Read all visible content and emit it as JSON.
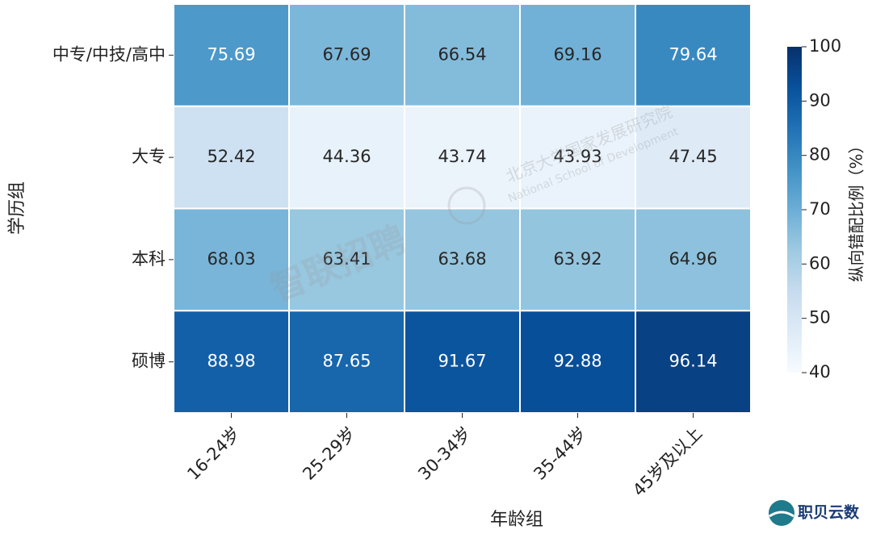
{
  "chart_data": {
    "type": "heatmap",
    "x_label": "年龄组",
    "y_label": "学历组",
    "categories": [
      "16-24岁",
      "25-29岁",
      "30-34岁",
      "35-44岁",
      "45岁及以上"
    ],
    "rows": [
      "中专/中技/高中",
      "大专",
      "本科",
      "硕博"
    ],
    "values": [
      [
        75.69,
        67.69,
        66.54,
        69.16,
        79.64
      ],
      [
        52.42,
        44.36,
        43.74,
        43.93,
        47.45
      ],
      [
        68.03,
        63.41,
        63.68,
        63.92,
        64.96
      ],
      [
        88.98,
        87.65,
        91.67,
        92.88,
        96.14
      ]
    ],
    "colormap": "Blues",
    "colorbar_label": "纵向错配比例（%）",
    "clim": [
      40,
      100
    ],
    "cticks": [
      40,
      50,
      60,
      70,
      80,
      90,
      100
    ]
  },
  "watermarks": [
    "智联招聘",
    "北京大学国家发展研究院",
    "National School of Development"
  ],
  "logo_text": "职贝云数"
}
